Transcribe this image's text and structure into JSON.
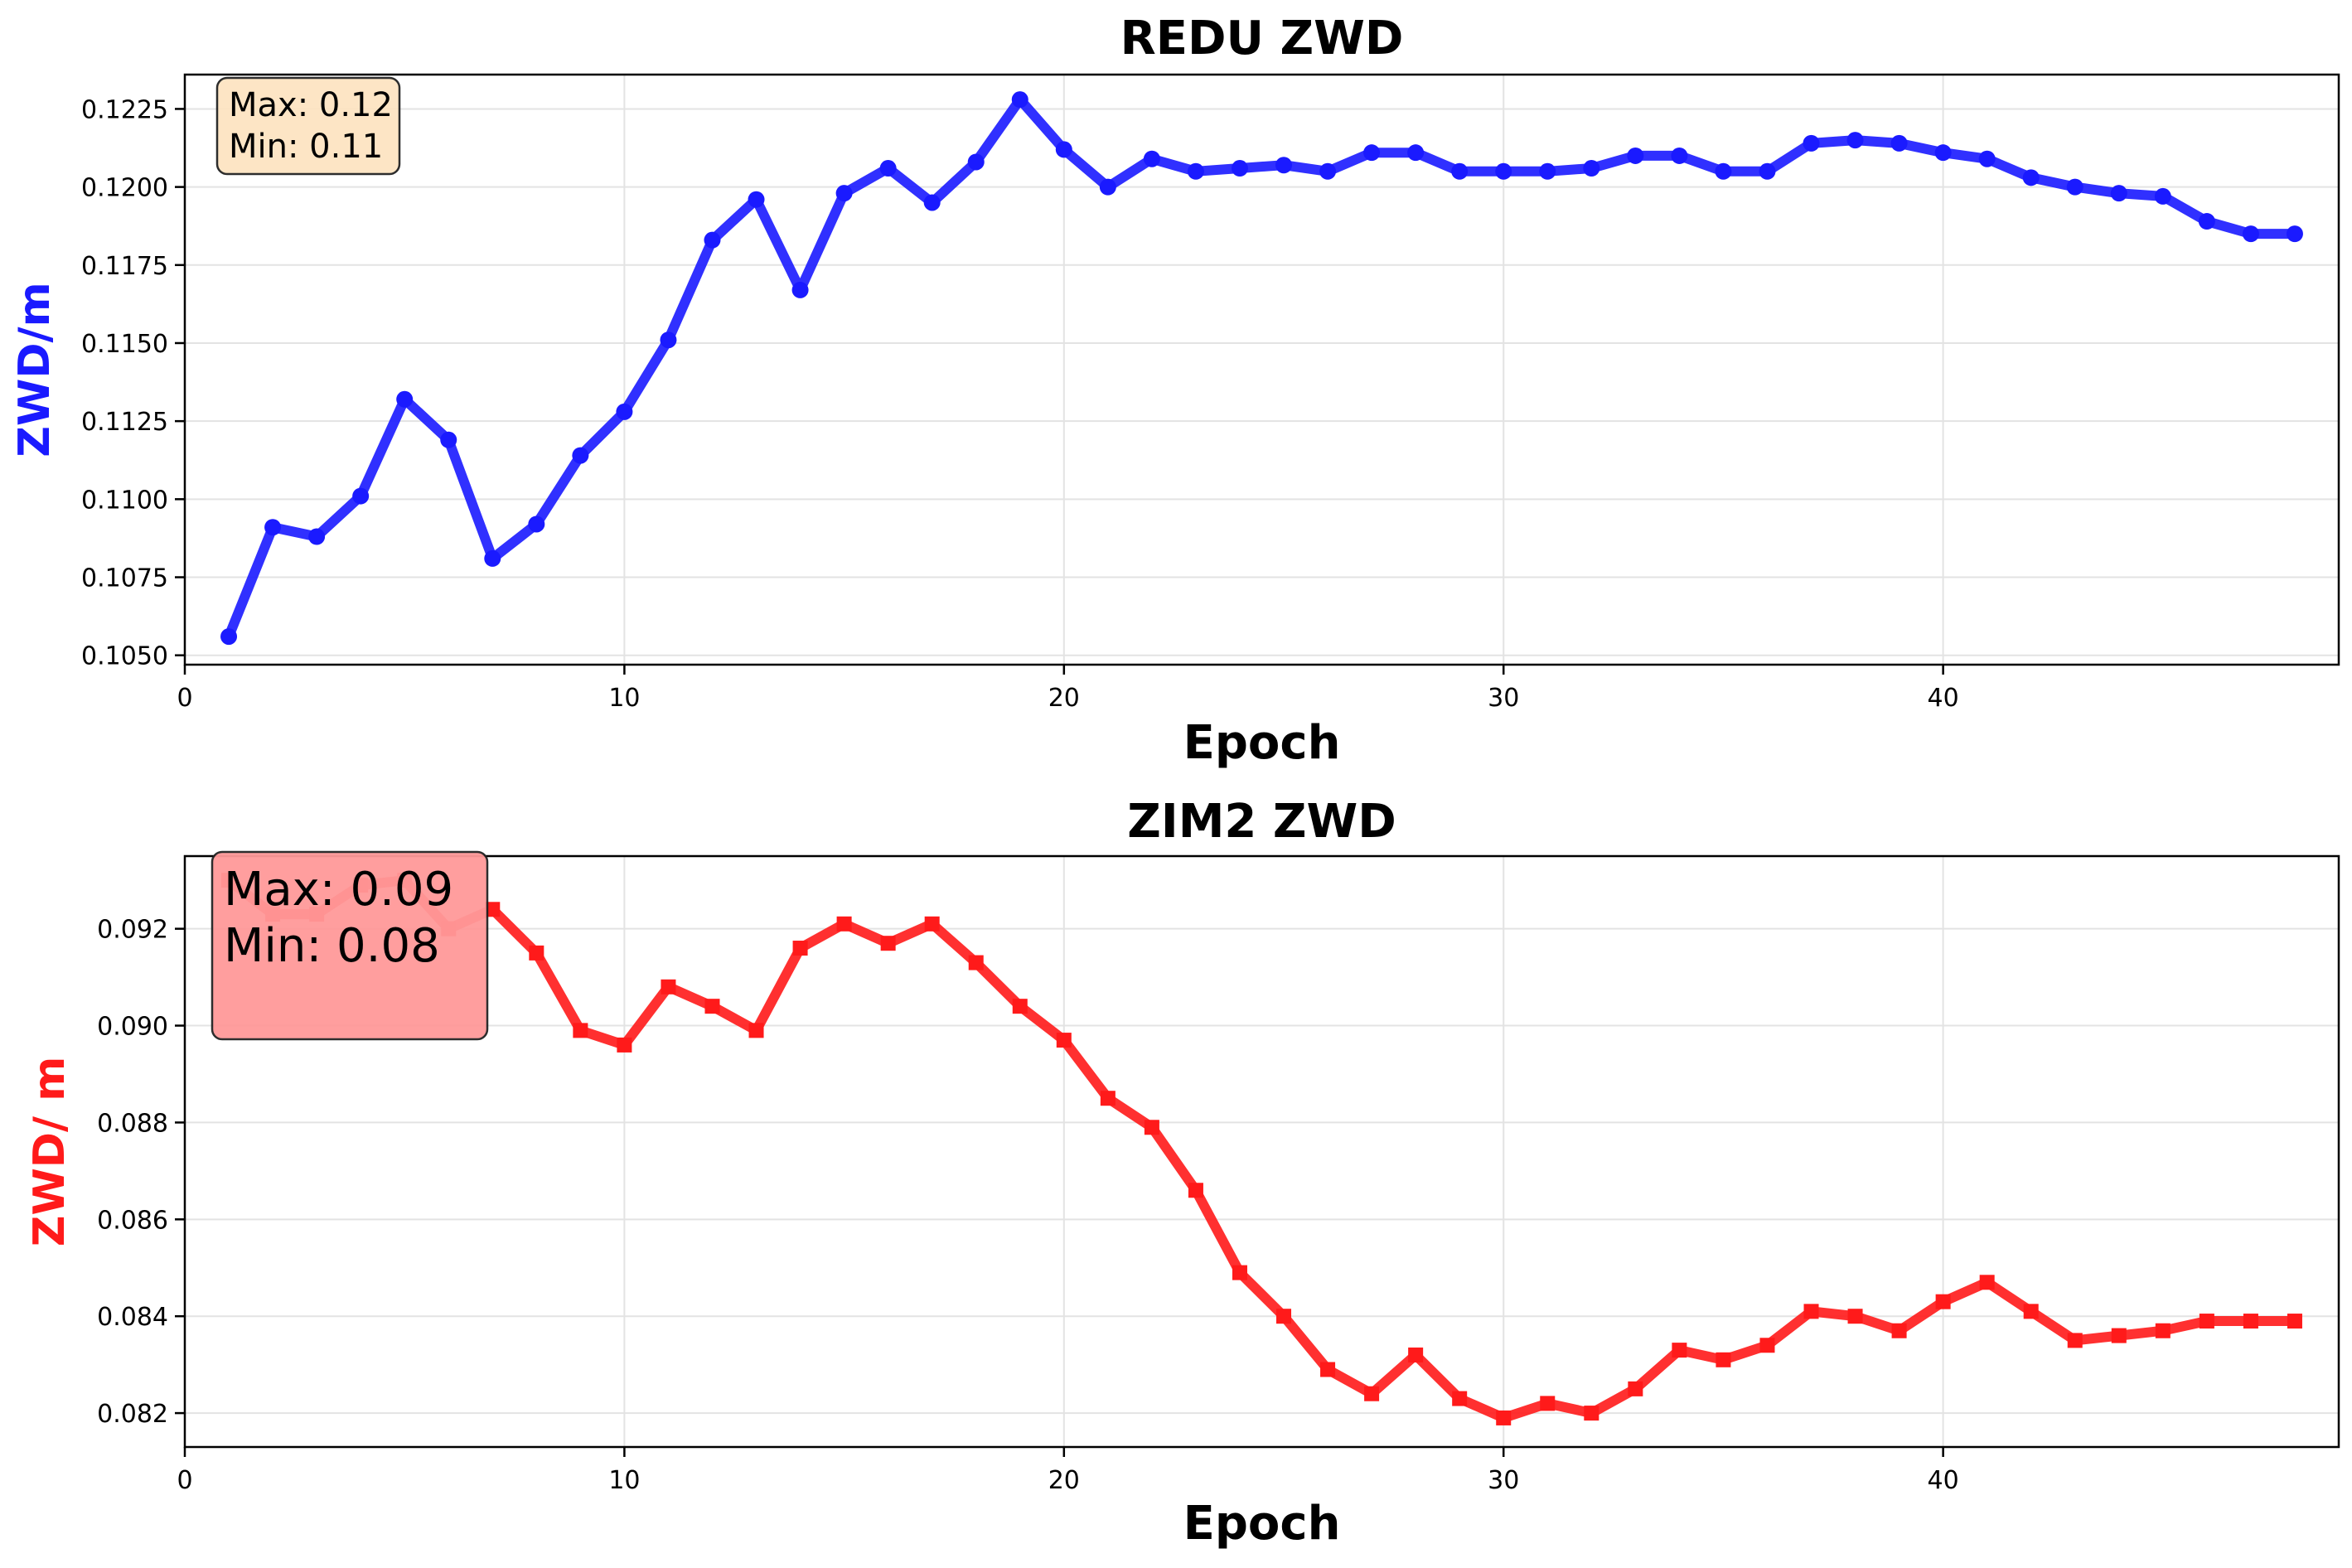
{
  "chart_data": [
    {
      "type": "line",
      "title": "REDU ZWD",
      "xlabel": "Epoch",
      "ylabel": "ZWD/m",
      "xlim": [
        0,
        49
      ],
      "ylim": [
        0.1047,
        0.1236
      ],
      "xticks": [
        0,
        10,
        20,
        30,
        40
      ],
      "yticks": [
        0.105,
        0.1075,
        0.11,
        0.1125,
        0.115,
        0.1175,
        0.12,
        0.1225
      ],
      "ytick_labels": [
        "0.1050",
        "0.1075",
        "0.1100",
        "0.1125",
        "0.1150",
        "0.1175",
        "0.1200",
        "0.1225"
      ],
      "grid": true,
      "color": "#1a1aff",
      "marker": "circle",
      "annotation": {
        "max_label": "Max: 0.12",
        "min_label": "Min: 0.11",
        "box_color": "#fde4c2"
      },
      "series": [
        {
          "x": [
            1,
            2,
            3,
            4,
            5,
            6,
            7,
            8,
            9,
            10,
            11,
            12,
            13,
            14,
            15,
            16,
            17,
            18,
            19,
            20,
            21,
            22,
            23,
            24,
            25,
            26,
            27,
            28,
            29,
            30,
            31,
            32,
            33,
            34,
            35,
            36,
            37,
            38,
            39,
            40,
            41,
            42,
            43,
            44,
            45,
            46,
            47,
            48
          ],
          "values": [
            0.1056,
            0.1091,
            0.1088,
            0.1101,
            0.1132,
            0.1119,
            0.1081,
            0.1092,
            0.1114,
            0.1128,
            0.1151,
            0.1183,
            0.1196,
            0.1167,
            0.1198,
            0.1206,
            0.1195,
            0.1208,
            0.1228,
            0.1212,
            0.12,
            0.1209,
            0.1205,
            0.1206,
            0.1207,
            0.1205,
            0.1211,
            0.1211,
            0.1205,
            0.1205,
            0.1205,
            0.1206,
            0.121,
            0.121,
            0.1205,
            0.1205,
            0.1214,
            0.1215,
            0.1214,
            0.1211,
            0.1209,
            0.1203,
            0.12,
            0.1198,
            0.1197,
            0.1189,
            0.1185,
            0.1185
          ]
        }
      ]
    },
    {
      "type": "line",
      "title": "ZIM2 ZWD",
      "xlabel": "Epoch",
      "ylabel": "ZWD/ m",
      "xlim": [
        0,
        49
      ],
      "ylim": [
        0.0813,
        0.0935
      ],
      "xticks": [
        0,
        10,
        20,
        30,
        40
      ],
      "yticks": [
        0.082,
        0.084,
        0.086,
        0.088,
        0.09,
        0.092
      ],
      "ytick_labels": [
        "0.082",
        "0.084",
        "0.086",
        "0.088",
        "0.090",
        "0.092"
      ],
      "grid": true,
      "color": "#ff1a1a",
      "marker": "square",
      "annotation": {
        "max_label": "Max: 0.09",
        "min_label": "Min: 0.08",
        "box_color": "#ff9999"
      },
      "series": [
        {
          "x": [
            1,
            2,
            3,
            4,
            5,
            6,
            7,
            8,
            9,
            10,
            11,
            12,
            13,
            14,
            15,
            16,
            17,
            18,
            19,
            20,
            21,
            22,
            23,
            24,
            25,
            26,
            27,
            28,
            29,
            30,
            31,
            32,
            33,
            34,
            35,
            36,
            37,
            38,
            39,
            40,
            41,
            42,
            43,
            44,
            45,
            46,
            47,
            48
          ],
          "values": [
            0.093,
            0.0923,
            0.0923,
            0.0929,
            0.093,
            0.092,
            0.0924,
            0.0915,
            0.0899,
            0.0896,
            0.0908,
            0.0904,
            0.0899,
            0.0916,
            0.0921,
            0.0917,
            0.0921,
            0.0913,
            0.0904,
            0.0897,
            0.0885,
            0.0879,
            0.0866,
            0.0849,
            0.084,
            0.0829,
            0.0824,
            0.0832,
            0.0823,
            0.0819,
            0.0822,
            0.082,
            0.0825,
            0.0833,
            0.0831,
            0.0834,
            0.0841,
            0.084,
            0.0837,
            0.0843,
            0.0847,
            0.0841,
            0.0835,
            0.0836,
            0.0837,
            0.0839,
            0.0839,
            0.0839
          ]
        }
      ]
    }
  ]
}
